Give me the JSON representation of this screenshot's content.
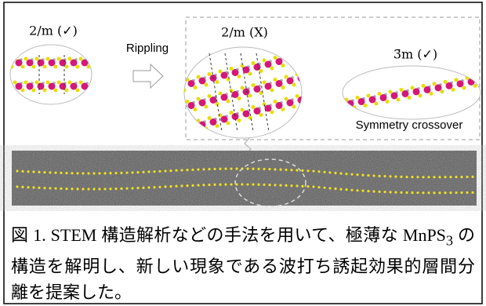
{
  "panel": {
    "left_label": "2/m (✓)",
    "arrow_label": "Rippling",
    "middle_label": "2/m (X)",
    "right_label": "3̄m (✓)",
    "right_caption": "Symmetry crossover"
  },
  "caption": {
    "prefix": "図 1. STEM 構造解析などの手法を用いて、極薄な MnPS",
    "subscript": "3",
    "suffix": " の構造を解明し、新しい現象である波打ち誘起効果的層間分離を提案した。"
  }
}
